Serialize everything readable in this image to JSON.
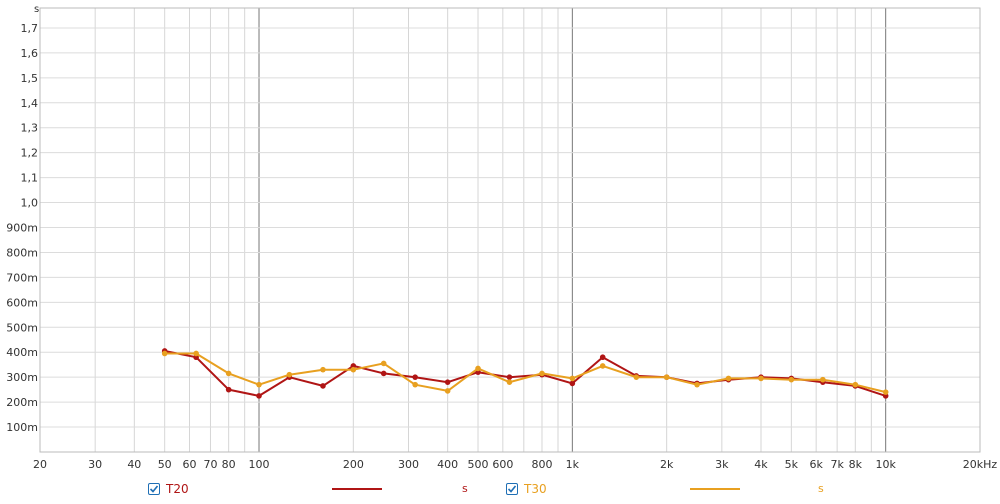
{
  "chart_data": {
    "type": "line",
    "y_unit": "s",
    "x_scale": "log",
    "xlim": [
      20,
      20000
    ],
    "ylim": [
      0,
      1.78
    ],
    "x_ticks": [
      {
        "v": 20,
        "label": "20"
      },
      {
        "v": 30,
        "label": "30"
      },
      {
        "v": 40,
        "label": "40"
      },
      {
        "v": 50,
        "label": "50"
      },
      {
        "v": 60,
        "label": "60"
      },
      {
        "v": 70,
        "label": "70"
      },
      {
        "v": 80,
        "label": "80"
      },
      {
        "v": 100,
        "label": "100"
      },
      {
        "v": 200,
        "label": "200"
      },
      {
        "v": 300,
        "label": "300"
      },
      {
        "v": 400,
        "label": "400"
      },
      {
        "v": 500,
        "label": "500"
      },
      {
        "v": 600,
        "label": "600"
      },
      {
        "v": 800,
        "label": "800"
      },
      {
        "v": 1000,
        "label": "1k"
      },
      {
        "v": 2000,
        "label": "2k"
      },
      {
        "v": 3000,
        "label": "3k"
      },
      {
        "v": 4000,
        "label": "4k"
      },
      {
        "v": 5000,
        "label": "5k"
      },
      {
        "v": 6000,
        "label": "6k"
      },
      {
        "v": 7000,
        "label": "7k"
      },
      {
        "v": 8000,
        "label": "8k"
      },
      {
        "v": 10000,
        "label": "10k"
      },
      {
        "v": 20000,
        "label": "20kHz"
      }
    ],
    "y_ticks": [
      {
        "v": 0.1,
        "label": "100m"
      },
      {
        "v": 0.2,
        "label": "200m"
      },
      {
        "v": 0.3,
        "label": "300m"
      },
      {
        "v": 0.4,
        "label": "400m"
      },
      {
        "v": 0.5,
        "label": "500m"
      },
      {
        "v": 0.6,
        "label": "600m"
      },
      {
        "v": 0.7,
        "label": "700m"
      },
      {
        "v": 0.8,
        "label": "800m"
      },
      {
        "v": 0.9,
        "label": "900m"
      },
      {
        "v": 1.0,
        "label": "1,0"
      },
      {
        "v": 1.1,
        "label": "1,1"
      },
      {
        "v": 1.2,
        "label": "1,2"
      },
      {
        "v": 1.3,
        "label": "1,3"
      },
      {
        "v": 1.4,
        "label": "1,4"
      },
      {
        "v": 1.5,
        "label": "1,5"
      },
      {
        "v": 1.6,
        "label": "1,6"
      },
      {
        "v": 1.7,
        "label": "1,7"
      }
    ],
    "x": [
      50,
      63,
      80,
      100,
      125,
      160,
      200,
      250,
      315,
      400,
      500,
      630,
      800,
      1000,
      1250,
      1600,
      2000,
      2500,
      3150,
      4000,
      5000,
      6300,
      8000,
      10000
    ],
    "series": [
      {
        "name": "T20",
        "color": "#b01515",
        "values": [
          0.405,
          0.38,
          0.25,
          0.225,
          0.3,
          0.265,
          0.345,
          0.315,
          0.3,
          0.28,
          0.32,
          0.3,
          0.31,
          0.275,
          0.38,
          0.305,
          0.3,
          0.275,
          0.29,
          0.3,
          0.295,
          0.28,
          0.265,
          0.225
        ]
      },
      {
        "name": "T30",
        "color": "#e8a020",
        "values": [
          0.395,
          0.395,
          0.315,
          0.27,
          0.31,
          0.33,
          0.33,
          0.355,
          0.27,
          0.245,
          0.335,
          0.28,
          0.315,
          0.295,
          0.345,
          0.3,
          0.3,
          0.27,
          0.295,
          0.295,
          0.29,
          0.29,
          0.27,
          0.24
        ]
      }
    ]
  },
  "legend": {
    "items": [
      {
        "label": "T20",
        "unit": "s",
        "color": "#b01515",
        "checked": true
      },
      {
        "label": "T30",
        "unit": "s",
        "color": "#e8a020",
        "checked": true
      }
    ]
  }
}
